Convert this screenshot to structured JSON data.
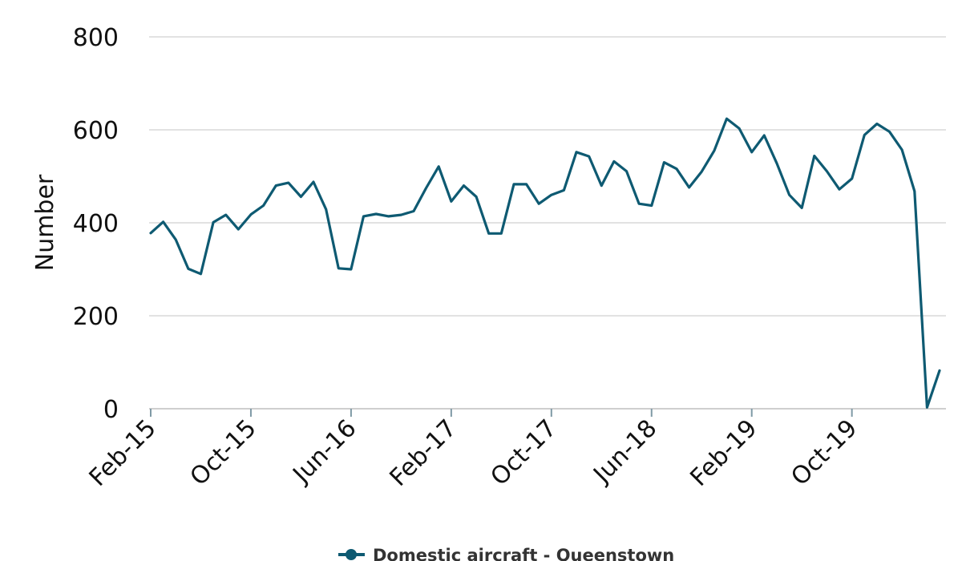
{
  "chart_data": {
    "type": "line",
    "title": "",
    "xlabel": "",
    "ylabel": "Number",
    "ylim": [
      0,
      800
    ],
    "yticks": [
      0,
      200,
      400,
      600,
      800
    ],
    "grid": true,
    "legend_position": "bottom",
    "x": [
      "Feb-15",
      "Mar-15",
      "Apr-15",
      "May-15",
      "Jun-15",
      "Jul-15",
      "Aug-15",
      "Sep-15",
      "Oct-15",
      "Nov-15",
      "Dec-15",
      "Jan-16",
      "Feb-16",
      "Mar-16",
      "Apr-16",
      "May-16",
      "Jun-16",
      "Jul-16",
      "Aug-16",
      "Sep-16",
      "Oct-16",
      "Nov-16",
      "Dec-16",
      "Jan-17",
      "Feb-17",
      "Mar-17",
      "Apr-17",
      "May-17",
      "Jun-17",
      "Jul-17",
      "Aug-17",
      "Sep-17",
      "Oct-17",
      "Nov-17",
      "Dec-17",
      "Jan-18",
      "Feb-18",
      "Mar-18",
      "Apr-18",
      "May-18",
      "Jun-18",
      "Jul-18",
      "Aug-18",
      "Sep-18",
      "Oct-18",
      "Nov-18",
      "Dec-18",
      "Jan-19",
      "Feb-19",
      "Mar-19",
      "Apr-19",
      "May-19",
      "Jun-19",
      "Jul-19",
      "Aug-19",
      "Sep-19",
      "Oct-19",
      "Nov-19",
      "Dec-19",
      "Jan-20",
      "Feb-20",
      "Mar-20",
      "Apr-20",
      "May-20"
    ],
    "xtick_labels": [
      "Feb-15",
      "Oct-15",
      "Jun-16",
      "Feb-17",
      "Oct-17",
      "Jun-18",
      "Feb-19",
      "Oct-19"
    ],
    "series": [
      {
        "name": "Domestic aircraft - Queenstown",
        "color": "#0e5a72",
        "values": [
          378,
          402,
          364,
          301,
          290,
          401,
          417,
          386,
          418,
          437,
          480,
          486,
          456,
          488,
          429,
          302,
          300,
          414,
          419,
          414,
          417,
          425,
          475,
          521,
          446,
          480,
          456,
          377,
          377,
          483,
          483,
          441,
          460,
          470,
          552,
          543,
          480,
          532,
          511,
          441,
          437,
          530,
          516,
          476,
          510,
          555,
          624,
          603,
          552,
          588,
          528,
          460,
          432,
          544,
          511,
          472,
          495,
          589,
          613,
          596,
          557,
          468,
          3,
          82
        ]
      }
    ]
  }
}
